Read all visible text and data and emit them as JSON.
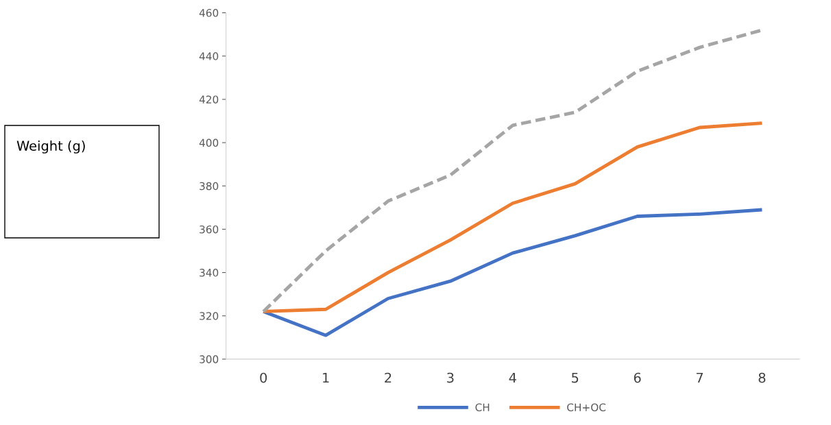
{
  "chart_data": {
    "type": "line",
    "annotations": [
      "Weight (g)"
    ],
    "categories": [
      "0",
      "1",
      "2",
      "3",
      "4",
      "5",
      "6",
      "7",
      "8"
    ],
    "series": [
      {
        "name": "CH",
        "color": "#4472c4",
        "values": [
          322,
          311,
          328,
          336,
          349,
          357,
          366,
          367,
          369
        ]
      },
      {
        "name": "CH+OC",
        "color": "#ed7d31",
        "values": [
          322,
          323,
          340,
          355,
          372,
          381,
          398,
          407,
          409
        ]
      },
      {
        "color": "#a5a5a5",
        "line_style": "dashed",
        "values": [
          322,
          350,
          373,
          385,
          408,
          414,
          433,
          444,
          452
        ]
      }
    ],
    "ylim": [
      300,
      460
    ],
    "yticks": [
      300,
      320,
      340,
      360,
      380,
      400,
      420,
      440,
      460
    ],
    "legend": "bottom",
    "grid": false,
    "line_style": "solid"
  }
}
